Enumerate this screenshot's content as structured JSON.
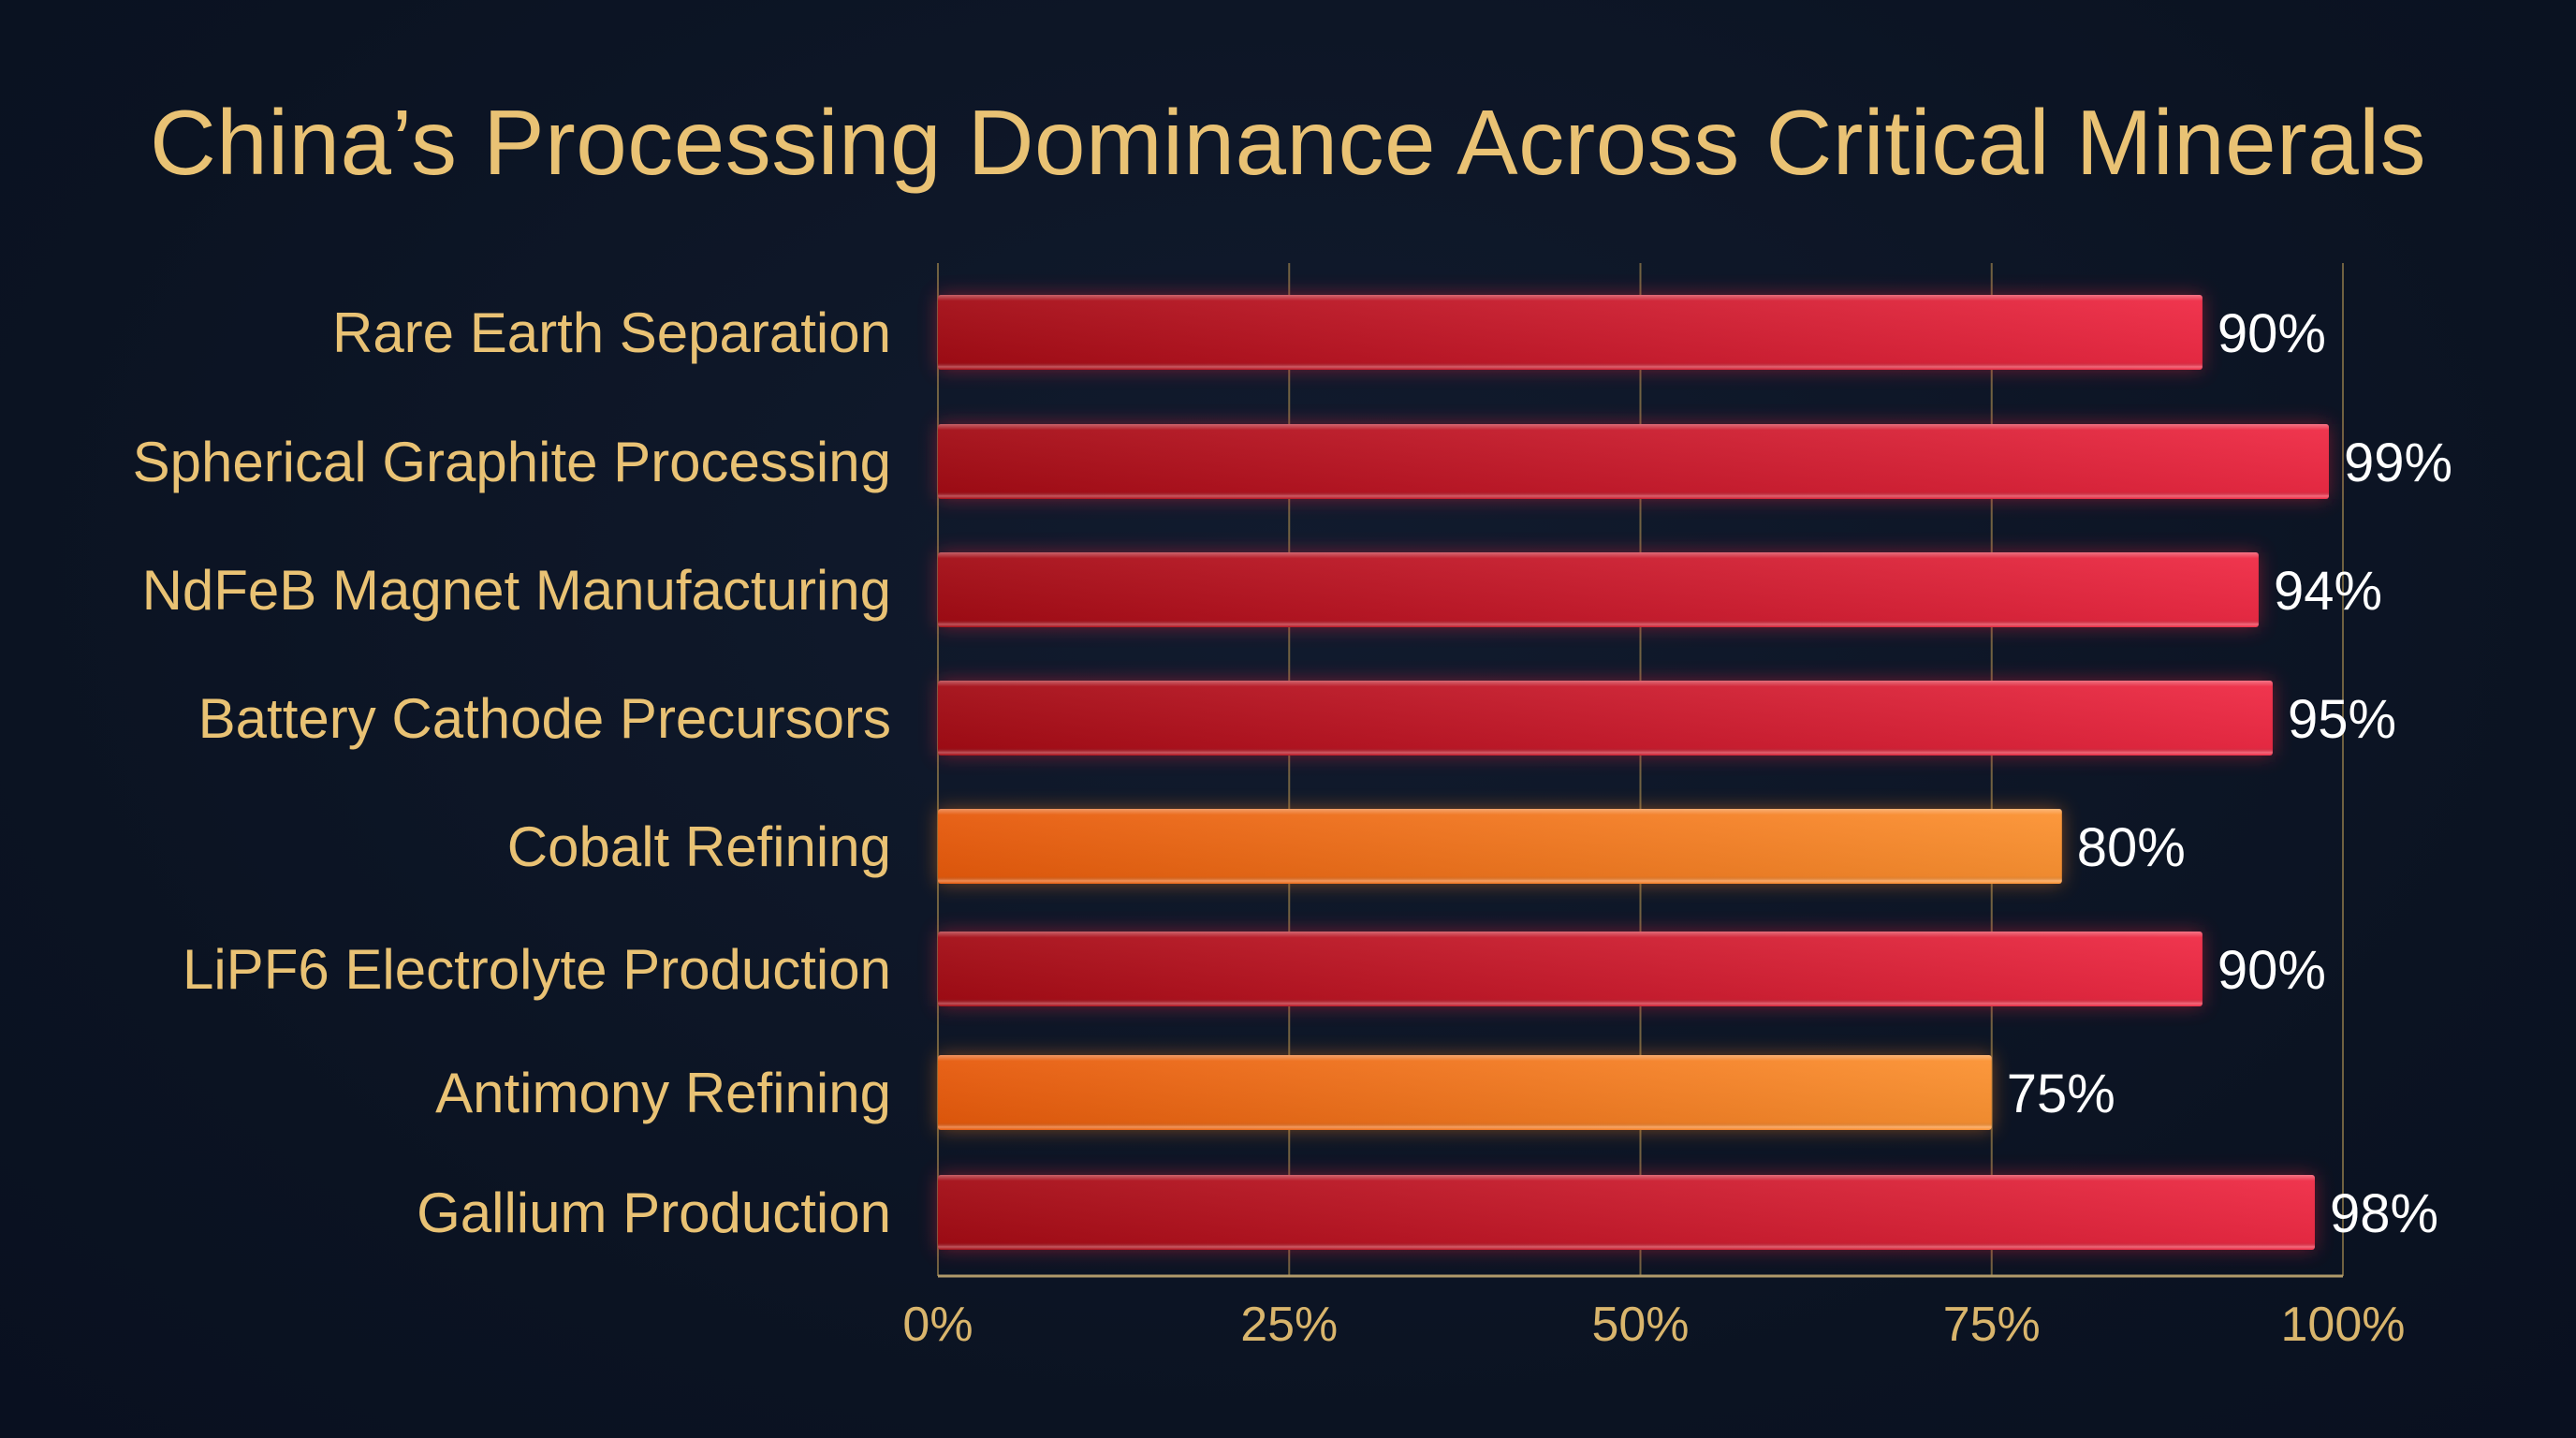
{
  "chart_data": {
    "type": "bar",
    "orientation": "horizontal",
    "title": "China’s Processing Dominance Across Critical Minerals",
    "categories": [
      "Rare Earth Separation",
      "Spherical Graphite Processing",
      "NdFeB Magnet Manufacturing",
      "Battery Cathode Precursors",
      "Cobalt Refining",
      "LiPF6 Electrolyte Production",
      "Antimony Refining",
      "Gallium Production"
    ],
    "values": [
      90,
      99,
      94,
      95,
      80,
      90,
      75,
      98
    ],
    "value_labels": [
      "90%",
      "99%",
      "94%",
      "95%",
      "80%",
      "90%",
      "75%",
      "98%"
    ],
    "bar_colors": [
      "red",
      "red",
      "red",
      "red",
      "orange",
      "red",
      "orange",
      "red"
    ],
    "xlim": [
      0,
      100
    ],
    "xticks": [
      0,
      25,
      50,
      75,
      100
    ],
    "xtick_labels": [
      "0%",
      "25%",
      "50%",
      "75%",
      "100%"
    ],
    "xlabel": "",
    "ylabel": "",
    "grid": "vertical",
    "legend": "none",
    "colors": {
      "red_start": "#a30c15",
      "red_end": "#ef2b45",
      "orange_start": "#e65a0c",
      "orange_end": "#fb9232",
      "text": "#e9c274",
      "background": "#0b1322",
      "grid": "#8a7548"
    }
  }
}
